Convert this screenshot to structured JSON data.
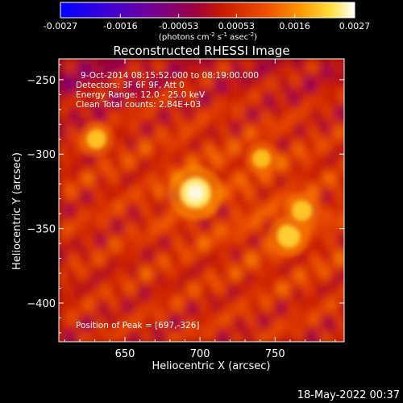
{
  "colorbar": {
    "colormap": "gnuplot-like (blue-purple-red-orange-yellow-white)",
    "range": [
      -0.0027,
      0.0027
    ],
    "tick_labels": [
      "-0.0027",
      "-0.0016",
      "-0.00053",
      "0.00053",
      "0.0016",
      "0.0027"
    ],
    "unit_parts": [
      "(photons cm",
      "-2",
      " s",
      "-1",
      " asec",
      "-2",
      ")"
    ]
  },
  "chart_data": {
    "type": "heatmap",
    "title": "Reconstructed RHESSI Image",
    "xlabel": "Heliocentric X (arcsec)",
    "ylabel": "Heliocentric Y (arcsec)",
    "xlim": [
      606,
      796
    ],
    "ylim": [
      -426,
      -236
    ],
    "xticks": [
      650,
      700,
      750
    ],
    "yticks": [
      -250,
      -300,
      -350,
      -400
    ],
    "annotations": [
      "9-Oct-2014 08:15:52.000 to 08:19:00.000",
      "Detectors: 3F 6F 9F, Att 0",
      "Energy Range: 12.0 - 25.0 keV",
      "Clean    Total counts: 2.84E+03"
    ],
    "peak_label": "Position of Peak = [697,-326]",
    "peak": [
      697,
      -326
    ],
    "bright_sources": [
      {
        "x": 697,
        "y": -326,
        "intensity": 1.0
      },
      {
        "x": 759,
        "y": -355,
        "intensity": 0.62
      },
      {
        "x": 768,
        "y": -338,
        "intensity": 0.5
      },
      {
        "x": 631,
        "y": -290,
        "intensity": 0.45
      },
      {
        "x": 741,
        "y": -303,
        "intensity": 0.4
      }
    ]
  },
  "timestamp": "18-May-2022 00:37"
}
